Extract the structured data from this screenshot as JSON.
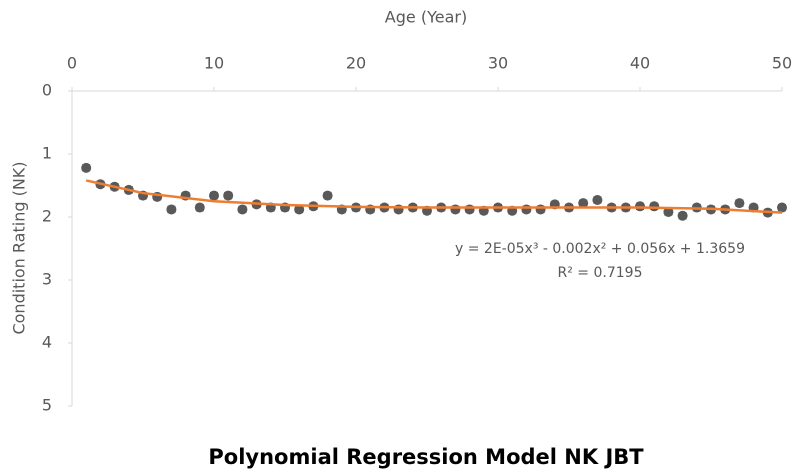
{
  "chart_data": {
    "type": "scatter",
    "title": "Polynomial Regression Model NK JBT",
    "x_label": "Age (Year)",
    "y_label": "Condition Rating (NK)",
    "equation": "y = 2E-05x³ - 0.002x² + 0.056x + 1.3659",
    "r_squared": "R² = 0.7195",
    "xlim": [
      0,
      50
    ],
    "xticks": [
      0,
      10,
      20,
      30,
      40,
      50
    ],
    "ylim": [
      0,
      5
    ],
    "yticks": [
      0,
      1,
      2,
      3,
      4,
      5
    ],
    "y_inverted": true,
    "x": [
      1,
      2,
      3,
      4,
      5,
      6,
      7,
      8,
      9,
      10,
      11,
      12,
      13,
      14,
      15,
      16,
      17,
      18,
      19,
      20,
      21,
      22,
      23,
      24,
      25,
      26,
      27,
      28,
      29,
      30,
      31,
      32,
      33,
      34,
      35,
      36,
      37,
      38,
      39,
      40,
      41,
      42,
      43,
      44,
      45,
      46,
      47,
      48,
      49,
      50
    ],
    "series": [
      {
        "color": "#595959",
        "values": [
          1.22,
          1.48,
          1.52,
          1.57,
          1.66,
          1.68,
          1.88,
          1.66,
          1.85,
          1.66,
          1.66,
          1.88,
          1.8,
          1.85,
          1.85,
          1.88,
          1.83,
          1.66,
          1.88,
          1.85,
          1.88,
          1.85,
          1.88,
          1.85,
          1.9,
          1.85,
          1.88,
          1.88,
          1.9,
          1.85,
          1.9,
          1.88,
          1.88,
          1.8,
          1.85,
          1.78,
          1.73,
          1.85,
          1.85,
          1.83,
          1.83,
          1.92,
          1.98,
          1.85,
          1.88,
          1.88,
          1.78,
          1.85,
          1.93,
          1.85
        ],
        "errors": [
          0.05,
          0.05,
          0.05,
          0.05,
          0.05,
          0.05,
          0.05,
          0.05,
          0.05,
          0.05,
          0.05,
          0.05,
          0.05,
          0.05,
          0.05,
          0.05,
          0.05,
          0.05,
          0.05,
          0.05,
          0.05,
          0.05,
          0.05,
          0.05,
          0.05,
          0.05,
          0.05,
          0.05,
          0.05,
          0.05,
          0.05,
          0.05,
          0.05,
          0.05,
          0.05,
          0.05,
          0.05,
          0.05,
          0.05,
          0.05,
          0.05,
          0.05,
          0.05,
          0.05,
          0.05,
          0.05,
          0.05,
          0.05,
          0.05,
          0.05
        ]
      }
    ],
    "trendline": {
      "color": "#ed7d31",
      "x": [
        1,
        5,
        10,
        15,
        20,
        25,
        30,
        35,
        40,
        45,
        50
      ],
      "values": [
        1.42,
        1.62,
        1.75,
        1.81,
        1.84,
        1.85,
        1.85,
        1.85,
        1.85,
        1.87,
        1.93
      ]
    }
  }
}
